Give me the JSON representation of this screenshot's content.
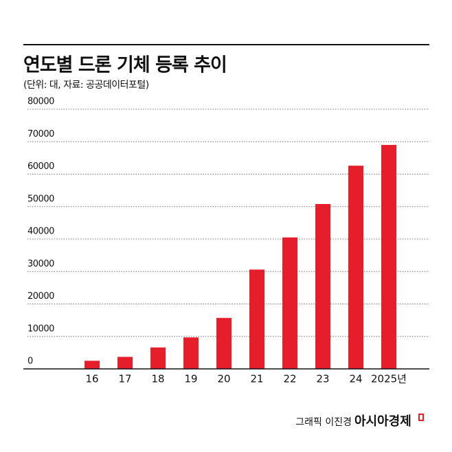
{
  "chart_data": {
    "type": "bar",
    "title": "연도별 드론 기체 등록 추이",
    "subtitle": "(단위: 대, 자료: 공공데이터포털)",
    "categories": [
      "16",
      "17",
      "18",
      "19",
      "20",
      "21",
      "22",
      "23",
      "24",
      "2025년"
    ],
    "values": [
      2500,
      3700,
      6600,
      9700,
      15700,
      30600,
      40500,
      50800,
      62600,
      69000
    ],
    "color": "#e61e2b",
    "ylim": [
      0,
      80000
    ],
    "yticks": [
      0,
      10000,
      20000,
      30000,
      40000,
      50000,
      60000,
      70000,
      80000
    ],
    "grid": true,
    "credit": "그래픽 이진경",
    "logo": "아시아경제"
  }
}
